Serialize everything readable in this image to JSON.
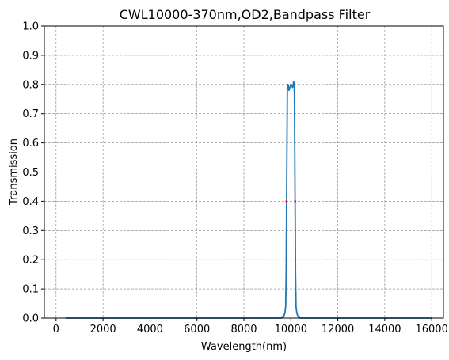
{
  "chart_data": {
    "type": "line",
    "title": "CWL10000-370nm,OD2,Bandpass Filter",
    "xlabel": "Wavelength(nm)",
    "ylabel": "Transmission",
    "xlim": [
      -500,
      16500
    ],
    "ylim": [
      0,
      1.0
    ],
    "xticks": [
      0,
      2000,
      4000,
      6000,
      8000,
      10000,
      12000,
      14000,
      16000
    ],
    "yticks": [
      0.0,
      0.1,
      0.2,
      0.3,
      0.4,
      0.5,
      0.6,
      0.7,
      0.8,
      0.9,
      1.0
    ],
    "xtick_labels": [
      "0",
      "2000",
      "4000",
      "6000",
      "8000",
      "10000",
      "12000",
      "14000",
      "16000"
    ],
    "ytick_labels": [
      "0.0",
      "0.1",
      "0.2",
      "0.3",
      "0.4",
      "0.5",
      "0.6",
      "0.7",
      "0.8",
      "0.9",
      "1.0"
    ],
    "grid": true,
    "series": [
      {
        "color": "#1f77b4",
        "x": [
          400,
          9600,
          9700,
          9750,
          9780,
          9800,
          9820,
          9850,
          9880,
          9920,
          10000,
          10080,
          10120,
          10150,
          10180,
          10200,
          10220,
          10250,
          10300,
          10400,
          16000
        ],
        "y": [
          0.0,
          0.0,
          0.005,
          0.02,
          0.04,
          0.15,
          0.4,
          0.79,
          0.8,
          0.78,
          0.8,
          0.79,
          0.81,
          0.79,
          0.4,
          0.15,
          0.04,
          0.02,
          0.005,
          0.0,
          0.0
        ]
      }
    ],
    "markers": [
      {
        "color": "#d62728",
        "x": 9815,
        "y": 0.4
      },
      {
        "color": "#d62728",
        "x": 10185,
        "y": 0.4
      }
    ]
  }
}
